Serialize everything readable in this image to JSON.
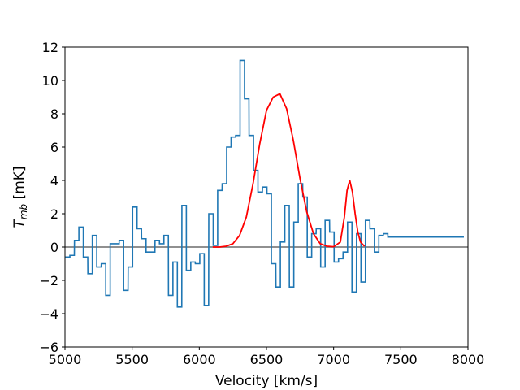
{
  "chart_data": {
    "type": "line",
    "xlabel": "Velocity [km/s]",
    "ylabel_main": "T",
    "ylabel_sub": "mb",
    "ylabel_unit": " [mK]",
    "xlim": [
      5000,
      8000
    ],
    "ylim": [
      -6,
      12
    ],
    "xticks": [
      5000,
      5500,
      6000,
      6500,
      7000,
      7500,
      8000
    ],
    "yticks": [
      -6,
      -4,
      -2,
      0,
      2,
      4,
      6,
      8,
      10,
      12
    ],
    "grid": false,
    "colors": {
      "spectrum": "#1f77b4",
      "fit": "#ff0000",
      "baseline": "#808080"
    },
    "series": [
      {
        "style": "step",
        "x": [
          5020,
          5053,
          5087,
          5120,
          5153,
          5187,
          5220,
          5253,
          5287,
          5320,
          5353,
          5387,
          5420,
          5453,
          5487,
          5520,
          5553,
          5587,
          5620,
          5653,
          5687,
          5720,
          5753,
          5787,
          5820,
          5853,
          5887,
          5920,
          5953,
          5987,
          6020,
          6053,
          6087,
          6120,
          6153,
          6187,
          6220,
          6253,
          6287,
          6320,
          6353,
          6387,
          6420,
          6453,
          6487,
          6520,
          6553,
          6587,
          6620,
          6653,
          6687,
          6720,
          6753,
          6787,
          6820,
          6853,
          6887,
          6920,
          6953,
          6987,
          7020,
          7053,
          7087,
          7120,
          7153,
          7187,
          7220,
          7253,
          7287,
          7320,
          7353,
          7387,
          7420,
          7453,
          7487,
          7520,
          7553,
          7587,
          7620,
          7653,
          7687,
          7720,
          7753,
          7787,
          7820,
          7853,
          7887,
          7920,
          7953
        ],
        "y": [
          -0.6,
          -0.5,
          0.4,
          1.2,
          -0.6,
          -1.6,
          0.7,
          -1.2,
          -1.0,
          -2.9,
          0.2,
          0.2,
          0.4,
          -2.6,
          -1.2,
          2.4,
          1.1,
          0.5,
          -0.3,
          -0.3,
          0.4,
          0.2,
          0.7,
          -2.9,
          -0.9,
          -3.6,
          2.5,
          -1.4,
          -0.9,
          -1.0,
          -0.4,
          -3.5,
          2.0,
          0.1,
          3.4,
          3.8,
          6.0,
          6.6,
          6.7,
          11.2,
          8.9,
          6.7,
          4.6,
          3.3,
          3.6,
          3.2,
          -1.0,
          -2.4,
          0.3,
          2.5,
          -2.4,
          1.5,
          3.8,
          3.0,
          -0.6,
          0.8,
          1.1,
          -1.2,
          1.6,
          0.9,
          -0.9,
          -0.7,
          -0.3,
          1.5,
          -2.7,
          0.8,
          -2.1,
          1.6,
          1.1,
          -0.3,
          0.7,
          0.8,
          0.6,
          0.6,
          0.6,
          0.6,
          0.6,
          0.6,
          0.6,
          0.6,
          0.6,
          0.6,
          0.6,
          0.6,
          0.6,
          0.6,
          0.6,
          0.6,
          0.6
        ]
      },
      {
        "style": "fit",
        "x": [
          6100,
          6150,
          6200,
          6250,
          6300,
          6350,
          6400,
          6450,
          6500,
          6550,
          6600,
          6650,
          6700,
          6750,
          6800,
          6850,
          6900,
          6950,
          7000,
          7050,
          7080,
          7100,
          7120,
          7140,
          7160,
          7180,
          7200,
          7230
        ],
        "y": [
          0,
          0,
          0.05,
          0.2,
          0.7,
          1.8,
          3.8,
          6.2,
          8.2,
          9.0,
          9.2,
          8.3,
          6.4,
          4.1,
          2.1,
          0.8,
          0.2,
          0.05,
          0.02,
          0.3,
          1.8,
          3.4,
          4.0,
          3.3,
          2.0,
          0.9,
          0.3,
          0.05
        ]
      }
    ]
  }
}
